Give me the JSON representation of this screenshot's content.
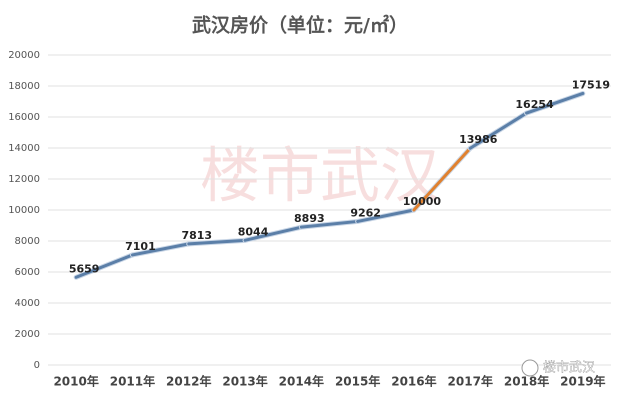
{
  "chart_data": {
    "type": "line",
    "title": "武汉房价（单位：元/㎡）",
    "categories": [
      "2010年",
      "2011年",
      "2012年",
      "2013年",
      "2014年",
      "2015年",
      "2016年",
      "2017年",
      "2018年",
      "2019年"
    ],
    "series": [
      {
        "color": "#5b7fa8",
        "values": [
          5659,
          7101,
          7813,
          8044,
          8893,
          9262,
          10000,
          13986,
          16254,
          17519
        ]
      }
    ],
    "segment_colors": [
      "#5b7fa8",
      "#5b7fa8",
      "#5b7fa8",
      "#5b7fa8",
      "#5b7fa8",
      "#5b7fa8",
      "#e0812f",
      "#5b7fa8",
      "#5b7fa8"
    ],
    "ylim": [
      0,
      20000
    ],
    "yticks": [
      0,
      2000,
      4000,
      6000,
      8000,
      10000,
      12000,
      14000,
      16000,
      18000,
      20000
    ],
    "grid": true,
    "watermark": "楼市武汉",
    "logo_text": "楼市武汉"
  }
}
